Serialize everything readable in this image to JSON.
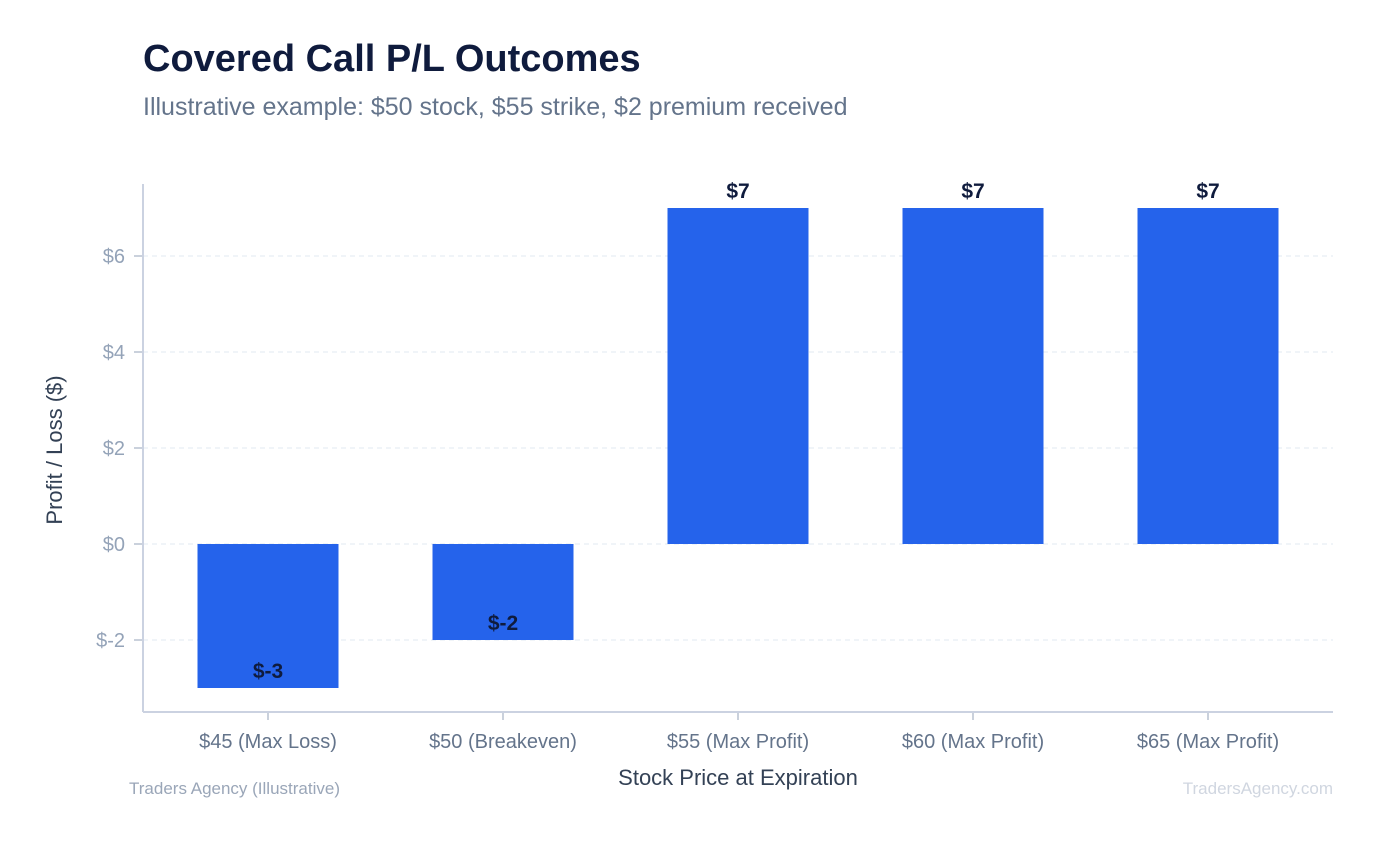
{
  "title": "Covered Call P/L Outcomes",
  "subtitle": "Illustrative example: $50 stock, $55 strike, $2 premium received",
  "footer_left": "Traders Agency (Illustrative)",
  "footer_right": "TradersAgency.com",
  "colors": {
    "bar": "#2563eb",
    "axis": "#cbd2e1",
    "tick_label": "#94a3b8",
    "grid": "#e2e8f0",
    "data_label": "#0f1b3d"
  },
  "chart_data": {
    "type": "bar",
    "categories": [
      "$45 (Max Loss)",
      "$50 (Breakeven)",
      "$55 (Max Profit)",
      "$60 (Max Profit)",
      "$65 (Max Profit)"
    ],
    "values": [
      -3,
      -2,
      7,
      7,
      7
    ],
    "data_labels": [
      "$-3",
      "$-2",
      "$7",
      "$7",
      "$7"
    ],
    "xlabel": "Stock Price at Expiration",
    "ylabel": "Profit / Loss ($)",
    "ylim": [
      -3.5,
      7.5
    ],
    "yticks": [
      -2,
      0,
      2,
      4,
      6
    ],
    "ytick_labels": [
      "$-2",
      "$0",
      "$2",
      "$4",
      "$6"
    ],
    "grid": "horizontal dashed",
    "legend": "none"
  }
}
